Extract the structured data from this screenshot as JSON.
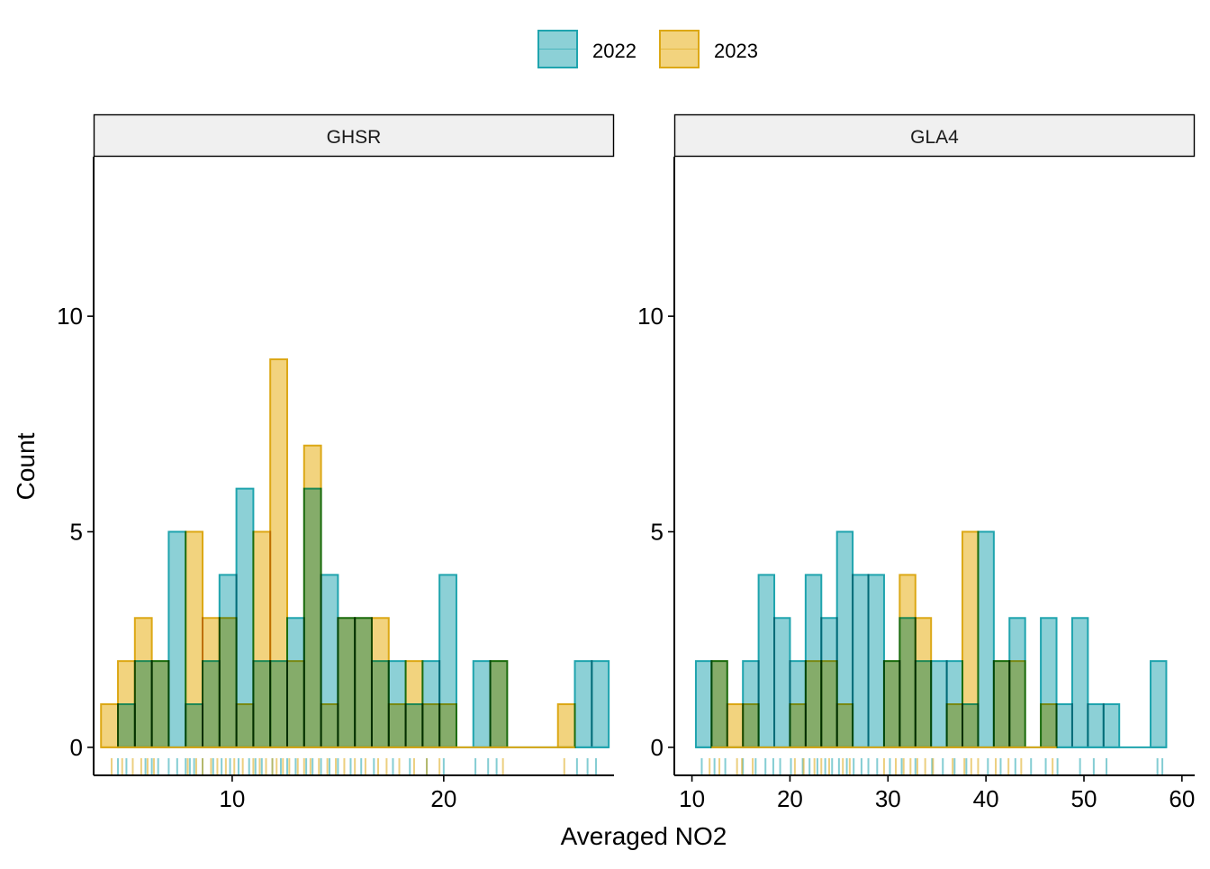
{
  "legend": {
    "items": [
      {
        "label": "2022",
        "fill": "#8CD0D6",
        "stroke": "#1FA4AE"
      },
      {
        "label": "2023",
        "fill": "#F2D37E",
        "stroke": "#DCA816"
      }
    ]
  },
  "xlabel": "Averaged NO2",
  "ylabel": "Count",
  "chart_data": [
    {
      "type": "bar",
      "panel": "GHSR",
      "xlabel": "Averaged NO2",
      "ylabel": "Count",
      "xlim": [
        3.45,
        28.05
      ],
      "ylim": [
        -0.65,
        13.7
      ],
      "x_ticks": [
        10,
        20
      ],
      "y_ticks": [
        0,
        5,
        10
      ],
      "binwidth": 0.8,
      "series": [
        {
          "name": "2022",
          "bin_centers": [
            5.0,
            5.8,
            6.6,
            7.4,
            8.2,
            9.0,
            9.8,
            10.6,
            11.4,
            12.2,
            13.0,
            13.8,
            14.6,
            15.4,
            16.2,
            17.0,
            17.8,
            18.6,
            19.4,
            20.2,
            21.8,
            22.6,
            26.6,
            27.4
          ],
          "values": [
            1,
            2,
            2,
            5,
            1,
            2,
            4,
            6,
            2,
            2,
            3,
            6,
            4,
            3,
            3,
            2,
            2,
            1,
            2,
            4,
            2,
            2,
            2,
            2
          ],
          "rug": [
            4.6,
            5.0,
            5.9,
            6.2,
            6.5,
            7.0,
            7.4,
            7.8,
            8.0,
            8.2,
            8.6,
            9.1,
            9.5,
            9.9,
            10.3,
            10.8,
            11.1,
            11.4,
            11.9,
            12.3,
            12.6,
            13.0,
            13.5,
            13.8,
            14.2,
            14.6,
            15.0,
            15.6,
            16.1,
            16.7,
            17.6,
            18.4,
            19.2,
            20.0,
            21.5,
            22.1,
            22.5,
            26.3,
            26.8,
            27.2
          ]
        },
        {
          "name": "2023",
          "bin_centers": [
            4.2,
            5.0,
            5.8,
            6.6,
            8.2,
            9.0,
            9.8,
            10.6,
            11.4,
            12.2,
            13.0,
            13.8,
            14.6,
            15.4,
            16.2,
            17.0,
            17.8,
            18.6,
            19.4,
            20.2,
            22.6,
            25.8
          ],
          "values": [
            1,
            2,
            3,
            2,
            5,
            3,
            3,
            1,
            5,
            9,
            2,
            7,
            1,
            3,
            3,
            3,
            1,
            2,
            1,
            1,
            2,
            1
          ],
          "rug": [
            4.3,
            4.8,
            5.3,
            5.7,
            6.0,
            6.3,
            7.9,
            8.3,
            8.6,
            9.0,
            9.3,
            9.7,
            10.1,
            10.5,
            11.0,
            11.3,
            11.6,
            11.9,
            12.1,
            12.4,
            12.7,
            13.1,
            13.4,
            13.7,
            14.1,
            14.5,
            14.9,
            15.3,
            15.8,
            16.3,
            16.9,
            17.3,
            17.9,
            18.6,
            19.2,
            19.8,
            22.8,
            25.7
          ]
        }
      ]
    },
    {
      "type": "bar",
      "panel": "GLA4",
      "xlabel": "Averaged NO2",
      "ylabel": "Count",
      "xlim": [
        8.2,
        61.3
      ],
      "ylim": [
        -0.65,
        13.7
      ],
      "x_ticks": [
        10,
        20,
        30,
        40,
        50,
        60
      ],
      "y_ticks": [
        0,
        5,
        10
      ],
      "binwidth": 1.6,
      "series": [
        {
          "name": "2022",
          "bin_centers": [
            11.2,
            12.8,
            16.0,
            17.6,
            19.2,
            20.8,
            22.4,
            24.0,
            25.6,
            27.2,
            28.8,
            30.4,
            32.0,
            33.6,
            35.2,
            36.8,
            38.4,
            40.0,
            41.6,
            43.2,
            46.4,
            48.0,
            49.6,
            51.2,
            52.8,
            57.6
          ],
          "values": [
            2,
            2,
            2,
            4,
            3,
            2,
            4,
            3,
            5,
            4,
            4,
            2,
            3,
            2,
            2,
            2,
            1,
            5,
            2,
            3,
            3,
            1,
            3,
            1,
            1,
            2
          ],
          "rug": [
            11.0,
            12.3,
            13.4,
            15.2,
            16.5,
            17.5,
            18.3,
            19.0,
            20.1,
            21.3,
            22.0,
            22.8,
            23.6,
            24.3,
            25.0,
            25.8,
            26.5,
            27.3,
            28.0,
            28.9,
            30.2,
            31.4,
            32.8,
            34.5,
            35.6,
            36.8,
            38.0,
            40.2,
            41.5,
            43.0,
            44.6,
            46.1,
            47.3,
            49.6,
            51.0,
            52.3,
            57.5,
            58.0
          ]
        },
        {
          "name": "2023",
          "bin_centers": [
            12.8,
            14.4,
            16.0,
            20.8,
            22.4,
            24.0,
            25.6,
            30.4,
            32.0,
            33.6,
            36.8,
            38.4,
            41.6,
            43.2,
            46.4
          ],
          "values": [
            2,
            1,
            1,
            1,
            2,
            2,
            1,
            2,
            4,
            3,
            1,
            5,
            2,
            2,
            1
          ],
          "rug": [
            11.8,
            12.8,
            14.6,
            15.1,
            16.2,
            20.5,
            21.4,
            22.5,
            23.2,
            24.0,
            25.4,
            26.1,
            29.6,
            30.8,
            31.6,
            32.3,
            33.0,
            33.8,
            34.6,
            36.6,
            37.8,
            38.5,
            39.2,
            41.0,
            42.3,
            43.6,
            46.8
          ]
        }
      ]
    }
  ]
}
